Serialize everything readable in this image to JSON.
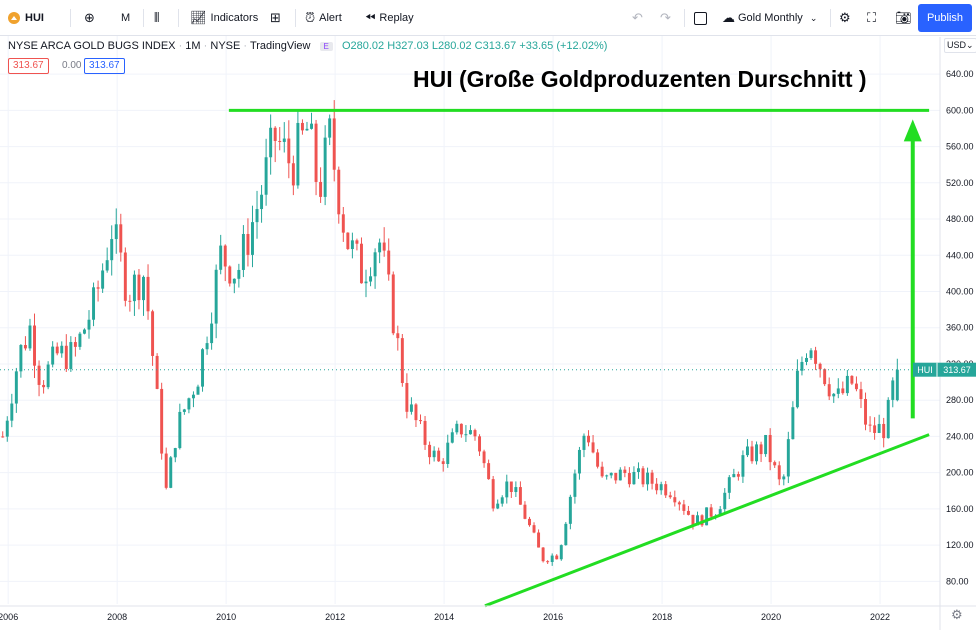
{
  "toolbar": {
    "symbol": "HUI",
    "interval": "M",
    "indicators_label": "Indicators",
    "alert_label": "Alert",
    "replay_label": "Replay",
    "layout_name": "Gold Monthly",
    "publish_label": "Publish"
  },
  "legend": {
    "name": "NYSE ARCA GOLD BUGS INDEX",
    "interval": "1M",
    "exchange": "NYSE",
    "source": "TradingView",
    "tag": "E",
    "ohlc": "O280.02 H327.03 L280.02 C313.67 +33.65 (+12.02%)",
    "price_bid": "313.67",
    "spread": "0.00",
    "price_ask": "313.67"
  },
  "annotation": "HUI (Große Goldproduzenten Durschnitt )",
  "currency": "USD",
  "last_price_label": {
    "symbol": "HUI",
    "price": "313.67"
  },
  "colors": {
    "up": "#26a69a",
    "down": "#ef5350",
    "trendline": "#22dd22",
    "accent": "#2962ff"
  },
  "chart_data": {
    "type": "candlestick",
    "title": "HUI (Große Goldproduzenten Durschnitt )",
    "x_ticks": [
      "2006",
      "2008",
      "2010",
      "2012",
      "2014",
      "2016",
      "2018",
      "2020",
      "2022"
    ],
    "y_ticks": [
      "80.00",
      "120.00",
      "160.00",
      "200.00",
      "240.00",
      "280.00",
      "320.00",
      "360.00",
      "400.00",
      "440.00",
      "480.00",
      "520.00",
      "560.00",
      "600.00",
      "640.00"
    ],
    "ylim": [
      55,
      660
    ],
    "xlim": [
      2005.85,
      2023.1
    ],
    "last_price": 313.67,
    "anchors": [
      [
        2005.9,
        240
      ],
      [
        2006.2,
        330
      ],
      [
        2006.4,
        360
      ],
      [
        2006.6,
        300
      ],
      [
        2006.9,
        330
      ],
      [
        2007.2,
        330
      ],
      [
        2007.6,
        390
      ],
      [
        2007.9,
        470
      ],
      [
        2008.2,
        400
      ],
      [
        2008.5,
        420
      ],
      [
        2008.9,
        180
      ],
      [
        2009.1,
        250
      ],
      [
        2009.5,
        310
      ],
      [
        2009.9,
        440
      ],
      [
        2010.2,
        420
      ],
      [
        2010.6,
        500
      ],
      [
        2010.9,
        570
      ],
      [
        2011.2,
        540
      ],
      [
        2011.5,
        580
      ],
      [
        2011.7,
        510
      ],
      [
        2011.9,
        570
      ],
      [
        2012.2,
        460
      ],
      [
        2012.5,
        420
      ],
      [
        2012.8,
        460
      ],
      [
        2013.1,
        360
      ],
      [
        2013.3,
        280
      ],
      [
        2013.6,
        240
      ],
      [
        2013.9,
        210
      ],
      [
        2014.3,
        250
      ],
      [
        2014.6,
        240
      ],
      [
        2014.9,
        170
      ],
      [
        2015.2,
        190
      ],
      [
        2015.5,
        150
      ],
      [
        2015.8,
        105
      ],
      [
        2016.1,
        110
      ],
      [
        2016.4,
        200
      ],
      [
        2016.6,
        250
      ],
      [
        2016.9,
        190
      ],
      [
        2017.3,
        200
      ],
      [
        2017.8,
        190
      ],
      [
        2018.2,
        180
      ],
      [
        2018.6,
        145
      ],
      [
        2019.0,
        160
      ],
      [
        2019.5,
        215
      ],
      [
        2019.9,
        230
      ],
      [
        2020.2,
        180
      ],
      [
        2020.5,
        310
      ],
      [
        2020.7,
        350
      ],
      [
        2020.9,
        320
      ],
      [
        2021.2,
        280
      ],
      [
        2021.5,
        300
      ],
      [
        2021.8,
        245
      ],
      [
        2022.1,
        250
      ],
      [
        2022.3,
        313.67
      ]
    ],
    "lines": [
      {
        "name": "resistance",
        "x": [
          2010.05,
          2022.9
        ],
        "y": [
          600,
          600
        ]
      },
      {
        "name": "support",
        "x": [
          2014.75,
          2022.9
        ],
        "y": [
          53,
          242
        ]
      },
      {
        "name": "target-arrow",
        "x": [
          2022.6,
          2022.6
        ],
        "y": [
          260,
          590
        ]
      }
    ]
  }
}
